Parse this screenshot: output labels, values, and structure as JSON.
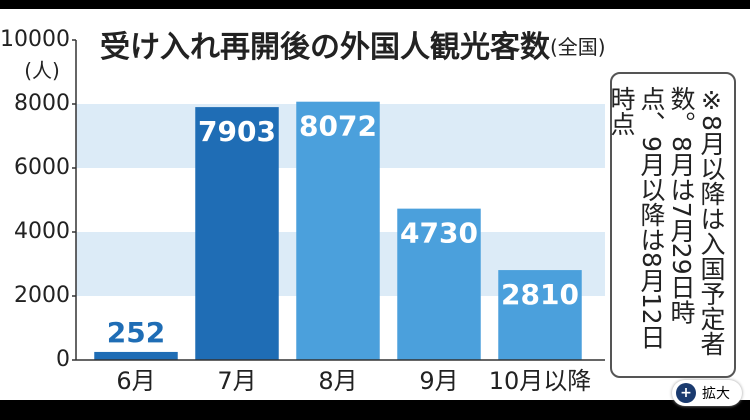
{
  "chart_data": {
    "type": "bar",
    "title": "受け入れ再開後の外国人観光客数",
    "subtitle": "(全国)",
    "y_label": "(人)",
    "categories": [
      "6月",
      "7月",
      "8月",
      "9月",
      "10月以降"
    ],
    "values": [
      252,
      7903,
      8072,
      4730,
      2810
    ],
    "colors": [
      "#1f6db5",
      "#1f6db5",
      "#4ba0dc",
      "#4ba0dc",
      "#4ba0dc"
    ],
    "ylim": [
      0,
      10000
    ],
    "yticks": [
      0,
      2000,
      4000,
      6000,
      8000,
      10000
    ],
    "band_color": "#dcebf7",
    "note": "※8月以降は入国予定者数。8月は7月29日時点、9月以降は8月12日時点"
  },
  "ui": {
    "expand_button": "拡大"
  }
}
